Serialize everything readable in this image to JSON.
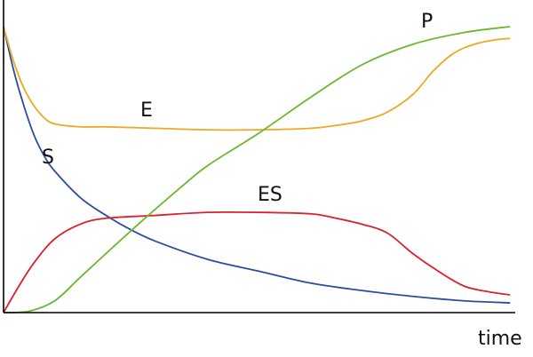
{
  "chart_data": {
    "type": "line",
    "x_label": "time",
    "xlim": [
      0,
      100
    ],
    "ylim": [
      0,
      100
    ],
    "series": [
      {
        "name": "S",
        "color": "#2a4ea0",
        "x": [
          0,
          2,
          4,
          6,
          8,
          10,
          15,
          20,
          25,
          30,
          40,
          50,
          60,
          70,
          80,
          90,
          99
        ],
        "values": [
          97,
          82,
          70,
          60,
          53,
          48,
          39,
          33,
          28,
          24,
          18,
          14,
          10,
          7.5,
          5.5,
          4,
          3.3
        ]
      },
      {
        "name": "E",
        "color": "#f0a820",
        "x": [
          0,
          2,
          4,
          6,
          8,
          10,
          15,
          20,
          30,
          40,
          50,
          60,
          65,
          70,
          75,
          80,
          84,
          88,
          92,
          96,
          99
        ],
        "values": [
          97,
          85,
          76,
          70,
          66,
          64,
          63,
          63,
          62.5,
          62,
          62,
          62.5,
          63.5,
          65,
          68,
          74,
          82,
          88,
          91,
          92.5,
          93
        ]
      },
      {
        "name": "ES",
        "color": "#d8232a",
        "x": [
          0,
          3,
          6,
          10,
          15,
          20,
          30,
          40,
          50,
          60,
          65,
          70,
          75,
          80,
          85,
          90,
          95,
          99
        ],
        "values": [
          0,
          9,
          17,
          25,
          30,
          32,
          33,
          34,
          34,
          33.5,
          32,
          30,
          27,
          20,
          14,
          9,
          7,
          6
        ]
      },
      {
        "name": "P",
        "color": "#6ab82e",
        "x": [
          0,
          5,
          10,
          15,
          20,
          27,
          35,
          40,
          50,
          60,
          70,
          80,
          90,
          99
        ],
        "values": [
          0,
          0.5,
          4,
          12,
          20,
          31,
          43,
          50,
          61,
          73,
          84,
          91,
          95,
          97
        ]
      }
    ]
  }
}
